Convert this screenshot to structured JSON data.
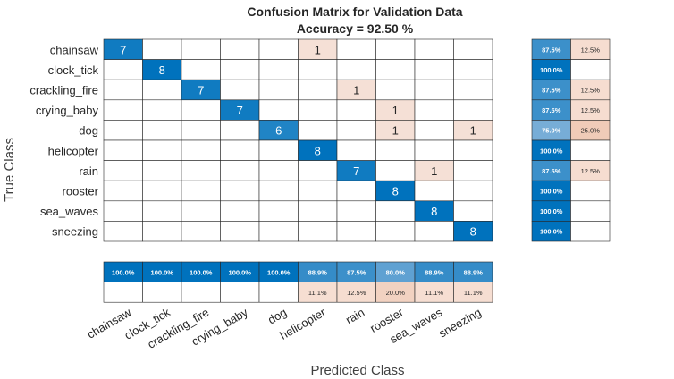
{
  "chart_data": {
    "type": "heatmap",
    "title": "Confusion Matrix for Validation Data",
    "subtitle": "Accuracy = 92.50 %",
    "xlabel": "Predicted Class",
    "ylabel": "True Class",
    "classes": [
      "chainsaw",
      "clock_tick",
      "crackling_fire",
      "crying_baby",
      "dog",
      "helicopter",
      "rain",
      "rooster",
      "sea_waves",
      "sneezing"
    ],
    "matrix": [
      [
        7,
        0,
        0,
        0,
        0,
        1,
        0,
        0,
        0,
        0
      ],
      [
        0,
        8,
        0,
        0,
        0,
        0,
        0,
        0,
        0,
        0
      ],
      [
        0,
        0,
        7,
        0,
        0,
        0,
        1,
        0,
        0,
        0
      ],
      [
        0,
        0,
        0,
        7,
        0,
        0,
        0,
        1,
        0,
        0
      ],
      [
        0,
        0,
        0,
        0,
        6,
        0,
        0,
        1,
        0,
        1
      ],
      [
        0,
        0,
        0,
        0,
        0,
        8,
        0,
        0,
        0,
        0
      ],
      [
        0,
        0,
        0,
        0,
        0,
        0,
        7,
        0,
        1,
        0
      ],
      [
        0,
        0,
        0,
        0,
        0,
        0,
        0,
        8,
        0,
        0
      ],
      [
        0,
        0,
        0,
        0,
        0,
        0,
        0,
        0,
        8,
        0
      ],
      [
        0,
        0,
        0,
        0,
        0,
        0,
        0,
        0,
        0,
        8
      ]
    ],
    "row_summary": {
      "correct": [
        "87.5%",
        "100.0%",
        "87.5%",
        "87.5%",
        "75.0%",
        "100.0%",
        "87.5%",
        "100.0%",
        "100.0%",
        "100.0%"
      ],
      "incorrect": [
        "12.5%",
        "",
        "12.5%",
        "12.5%",
        "25.0%",
        "",
        "12.5%",
        "",
        "",
        ""
      ]
    },
    "column_summary": {
      "correct": [
        "100.0%",
        "100.0%",
        "100.0%",
        "100.0%",
        "100.0%",
        "88.9%",
        "87.5%",
        "80.0%",
        "88.9%",
        "88.9%"
      ],
      "incorrect": [
        "",
        "",
        "",
        "",
        "",
        "11.1%",
        "12.5%",
        "20.0%",
        "11.1%",
        "11.1%"
      ]
    },
    "colors": {
      "diag": "#0072bd",
      "offdiag": "#f5e0d6",
      "grid": "#262626"
    }
  }
}
